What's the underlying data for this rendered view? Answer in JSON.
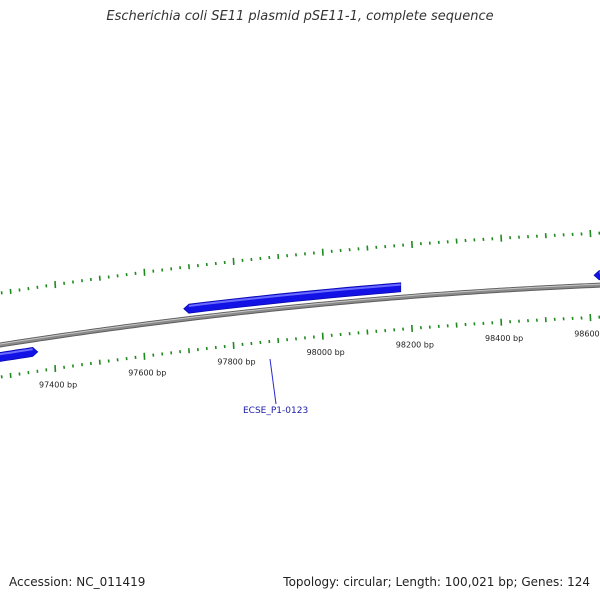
{
  "title": "Escherichia coli SE11 plasmid pSE11-1, complete sequence",
  "footer": {
    "accession": "Accession: NC_011419",
    "summary": "Topology: circular; Length: 100,021 bp; Genes: 124"
  },
  "colors": {
    "backbone": "#8a8a8a",
    "gene": "#1212e6",
    "gene_highlight": "#6a6aff",
    "tick": "#1f8a1f",
    "label_line": "#2a2ad0"
  },
  "scale": {
    "labels": [
      {
        "bp": 97400,
        "text": "97400 bp"
      },
      {
        "bp": 97600,
        "text": "97600 bp"
      },
      {
        "bp": 97800,
        "text": "97800 bp"
      },
      {
        "bp": 98000,
        "text": "98000 bp"
      },
      {
        "bp": 98200,
        "text": "98200 bp"
      },
      {
        "bp": 98400,
        "text": "98400 bp"
      },
      {
        "bp": 98600,
        "text": "98600 bp"
      }
    ]
  },
  "genes": [
    {
      "strand": "forward",
      "start_bp": 97250,
      "end_bp": 97350
    },
    {
      "strand": "reverse",
      "start_bp": 97700,
      "end_bp": 98175,
      "label": "ECSE_P1-0123"
    },
    {
      "strand": "reverse",
      "start_bp": 98620,
      "end_bp": 98700
    }
  ]
}
